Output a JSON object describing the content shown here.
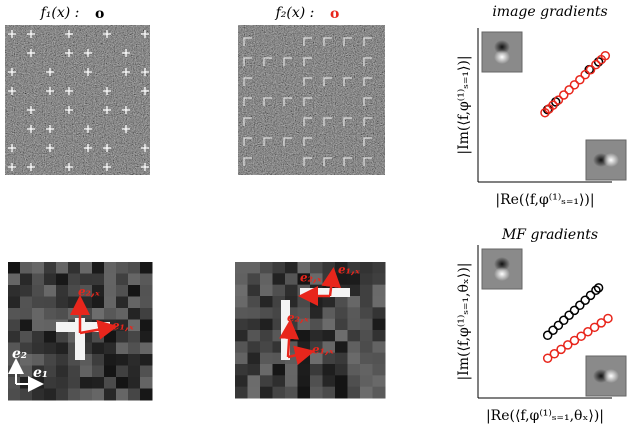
{
  "panels": [
    {
      "title": "f₁(x) :",
      "marker": "o",
      "marker_color": "#000000"
    },
    {
      "title": "f₂(x) :",
      "marker": "o",
      "marker_color": "#e8261c"
    }
  ],
  "scatters": [
    {
      "title": "image gradients",
      "ylabel": "|Im(⟨f,φ⁽¹⁾ₛ₌₁⟩)|",
      "xlabel": "|Re(⟨f,φ⁽¹⁾ₛ₌₁⟩)|",
      "series": [
        {
          "color": "#000000",
          "x": [
            0.52,
            0.58,
            0.83,
            0.9
          ],
          "y": [
            0.47,
            0.52,
            0.73,
            0.78
          ]
        },
        {
          "color": "#e8261c",
          "x": [
            0.5,
            0.53,
            0.56,
            0.6,
            0.64,
            0.68,
            0.72,
            0.76,
            0.8,
            0.84,
            0.88,
            0.92,
            0.95
          ],
          "y": [
            0.45,
            0.475,
            0.499,
            0.532,
            0.565,
            0.598,
            0.631,
            0.664,
            0.697,
            0.729,
            0.762,
            0.795,
            0.82
          ]
        }
      ]
    },
    {
      "title": "MF gradients",
      "ylabel": "|Im(⟨f,φ⁽¹⁾ₛ₌₁,θₓ⟩)|",
      "xlabel": "|Re(⟨f,φ⁽¹⁾ₛ₌₁,θₓ⟩)|",
      "series": [
        {
          "color": "#000000",
          "x": [
            0.52,
            0.56,
            0.6,
            0.64,
            0.68,
            0.72,
            0.76,
            0.8,
            0.84,
            0.88,
            0.9
          ],
          "y": [
            0.41,
            0.443,
            0.475,
            0.508,
            0.541,
            0.573,
            0.606,
            0.639,
            0.671,
            0.704,
            0.72
          ]
        },
        {
          "color": "#e8261c",
          "x": [
            0.52,
            0.57,
            0.62,
            0.67,
            0.72,
            0.77,
            0.82,
            0.87,
            0.92,
            0.97
          ],
          "y": [
            0.26,
            0.289,
            0.318,
            0.347,
            0.376,
            0.404,
            0.433,
            0.462,
            0.491,
            0.52
          ]
        }
      ]
    }
  ],
  "vectors": {
    "e1x": "e₁,ₓ",
    "e2x": "e₂,ₓ",
    "e1": "e₁",
    "e2": "e₂"
  }
}
